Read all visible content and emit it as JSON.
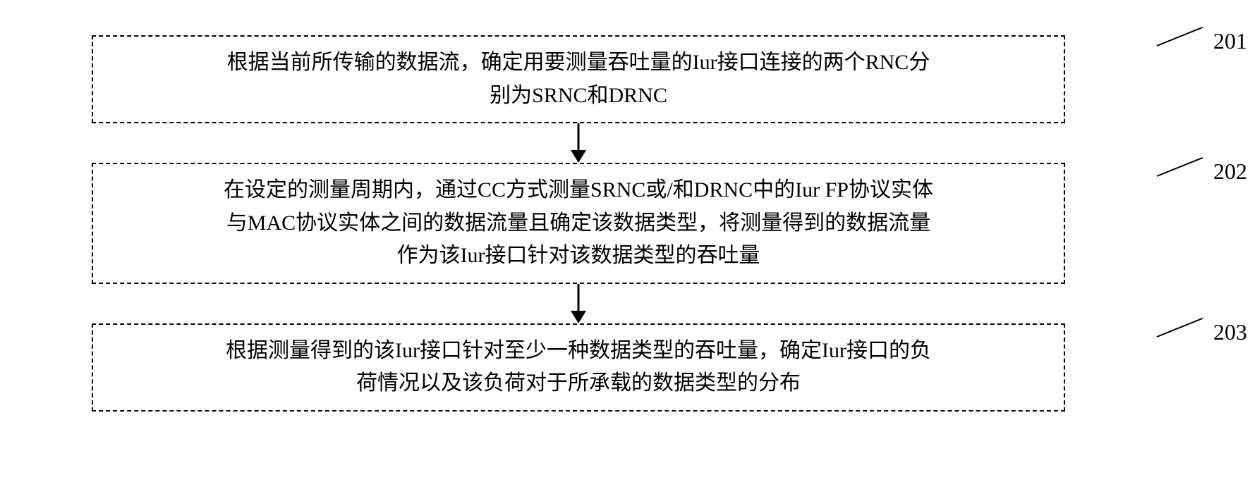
{
  "flowchart": {
    "type": "flowchart",
    "background_color": "#ffffff",
    "box_border_style": "dashed",
    "box_border_color": "#000000",
    "box_border_width": 2,
    "text_color": "#000000",
    "font_size": 30,
    "label_font_size": 32,
    "arrow_color": "#000000",
    "arrow_line_width": 3,
    "steps": [
      {
        "id": "201",
        "label": "201",
        "lines": [
          "根据当前所传输的数据流，确定用要测量吞吐量的Iur接口连接的两个RNC分",
          "别为SRNC和DRNC"
        ]
      },
      {
        "id": "202",
        "label": "202",
        "lines": [
          "在设定的测量周期内，通过CC方式测量SRNC或/和DRNC中的Iur FP协议实体",
          "与MAC协议实体之间的数据流量且确定该数据类型，将测量得到的数据流量",
          "作为该Iur接口针对该数据类型的吞吐量"
        ]
      },
      {
        "id": "203",
        "label": "203",
        "lines": [
          "根据测量得到的该Iur接口针对至少一种数据类型的吞吐量，确定Iur接口的负",
          "荷情况以及该负荷对于所承载的数据类型的分布"
        ]
      }
    ]
  }
}
